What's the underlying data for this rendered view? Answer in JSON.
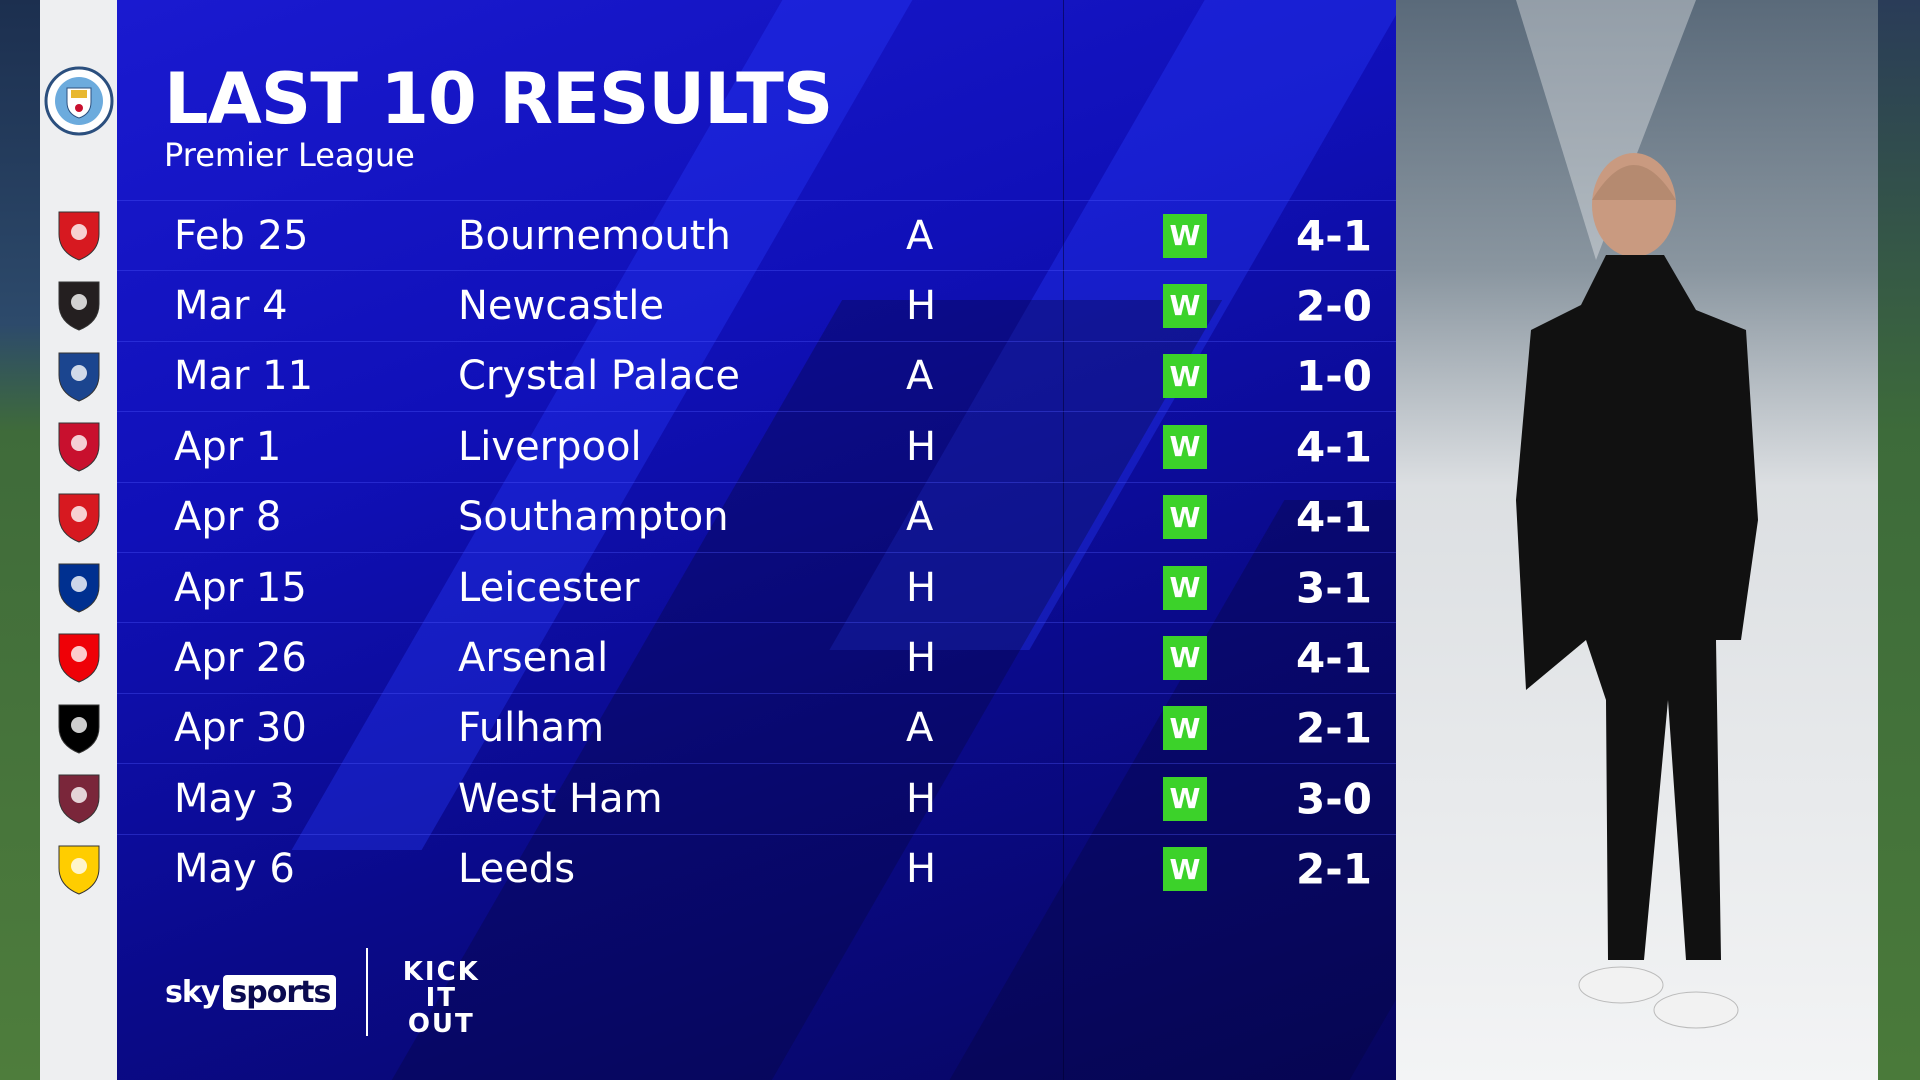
{
  "header": {
    "title": "LAST 10 RESULTS",
    "subtitle": "Premier League"
  },
  "team_crest": "manchester-city-crest",
  "columns": [
    "date",
    "opponent",
    "venue",
    "result",
    "score"
  ],
  "results": [
    {
      "date": "Feb 25",
      "opponent": "Bournemouth",
      "venue": "A",
      "result": "W",
      "score": "4-1",
      "crest": "bournemouth-crest",
      "crest_color": "#d71920"
    },
    {
      "date": "Mar 4",
      "opponent": "Newcastle",
      "venue": "H",
      "result": "W",
      "score": "2-0",
      "crest": "newcastle-crest",
      "crest_color": "#241f20"
    },
    {
      "date": "Mar 11",
      "opponent": "Crystal Palace",
      "venue": "A",
      "result": "W",
      "score": "1-0",
      "crest": "crystal-palace-crest",
      "crest_color": "#1b458f"
    },
    {
      "date": "Apr 1",
      "opponent": "Liverpool",
      "venue": "H",
      "result": "W",
      "score": "4-1",
      "crest": "liverpool-crest",
      "crest_color": "#c8102e"
    },
    {
      "date": "Apr 8",
      "opponent": "Southampton",
      "venue": "A",
      "result": "W",
      "score": "4-1",
      "crest": "southampton-crest",
      "crest_color": "#d71920"
    },
    {
      "date": "Apr 15",
      "opponent": "Leicester",
      "venue": "H",
      "result": "W",
      "score": "3-1",
      "crest": "leicester-crest",
      "crest_color": "#003090"
    },
    {
      "date": "Apr 26",
      "opponent": "Arsenal",
      "venue": "H",
      "result": "W",
      "score": "4-1",
      "crest": "arsenal-crest",
      "crest_color": "#ef0107"
    },
    {
      "date": "Apr 30",
      "opponent": "Fulham",
      "venue": "A",
      "result": "W",
      "score": "2-1",
      "crest": "fulham-crest",
      "crest_color": "#000000"
    },
    {
      "date": "May 3",
      "opponent": "West Ham",
      "venue": "H",
      "result": "W",
      "score": "3-0",
      "crest": "west-ham-crest",
      "crest_color": "#7a263a"
    },
    {
      "date": "May 6",
      "opponent": "Leeds",
      "venue": "H",
      "result": "W",
      "score": "2-1",
      "crest": "leeds-crest",
      "crest_color": "#ffcd00"
    }
  ],
  "colors": {
    "win": "#3cd22a",
    "panel": "#1010b8"
  },
  "footer": {
    "brand_sky": "sky",
    "brand_sports": "sports",
    "campaign_logo": "KICK IT OUT"
  }
}
